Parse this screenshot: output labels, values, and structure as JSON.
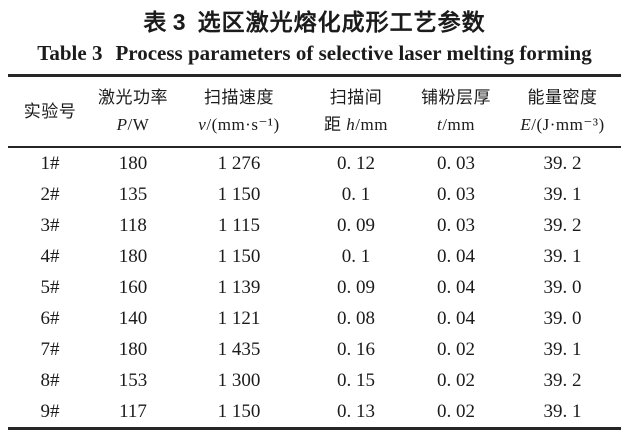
{
  "title_cn": {
    "prefix": "表 3",
    "text": "选区激光熔化成形工艺参数"
  },
  "title_en": {
    "prefix": "Table 3",
    "text": "Process parameters of selective laser melting forming"
  },
  "table": {
    "columns": [
      {
        "label": "实验号",
        "line2_prefix": "",
        "symbol": "",
        "unit": ""
      },
      {
        "label": "激光功率",
        "line2_prefix": "",
        "symbol": "P",
        "unit": "/W"
      },
      {
        "label": "扫描速度",
        "line2_prefix": "",
        "symbol": "v",
        "unit": "/(mm·s⁻¹)"
      },
      {
        "label": "扫描间",
        "line2_prefix": "距 ",
        "symbol": "h",
        "unit": "/mm"
      },
      {
        "label": "铺粉层厚",
        "line2_prefix": "",
        "symbol": "t",
        "unit": "/mm"
      },
      {
        "label": "能量密度",
        "line2_prefix": "",
        "symbol": "E",
        "unit": "/(J·mm⁻³)"
      }
    ],
    "rows": [
      [
        "1#",
        "180",
        "1 276",
        "0. 12",
        "0. 03",
        "39. 2"
      ],
      [
        "2#",
        "135",
        "1 150",
        "0. 1",
        "0. 03",
        "39. 1"
      ],
      [
        "3#",
        "118",
        "1 115",
        "0. 09",
        "0. 03",
        "39. 2"
      ],
      [
        "4#",
        "180",
        "1 150",
        "0. 1",
        "0. 04",
        "39. 1"
      ],
      [
        "5#",
        "160",
        "1 139",
        "0. 09",
        "0. 04",
        "39. 0"
      ],
      [
        "6#",
        "140",
        "1 121",
        "0. 08",
        "0. 04",
        "39. 0"
      ],
      [
        "7#",
        "180",
        "1 435",
        "0. 16",
        "0. 02",
        "39. 1"
      ],
      [
        "8#",
        "153",
        "1 300",
        "0. 15",
        "0. 02",
        "39. 2"
      ],
      [
        "9#",
        "117",
        "1 150",
        "0. 13",
        "0. 02",
        "39. 1"
      ]
    ]
  },
  "colors": {
    "text": "#1b1b1b",
    "rule": "#262626",
    "background": "#ffffff"
  }
}
